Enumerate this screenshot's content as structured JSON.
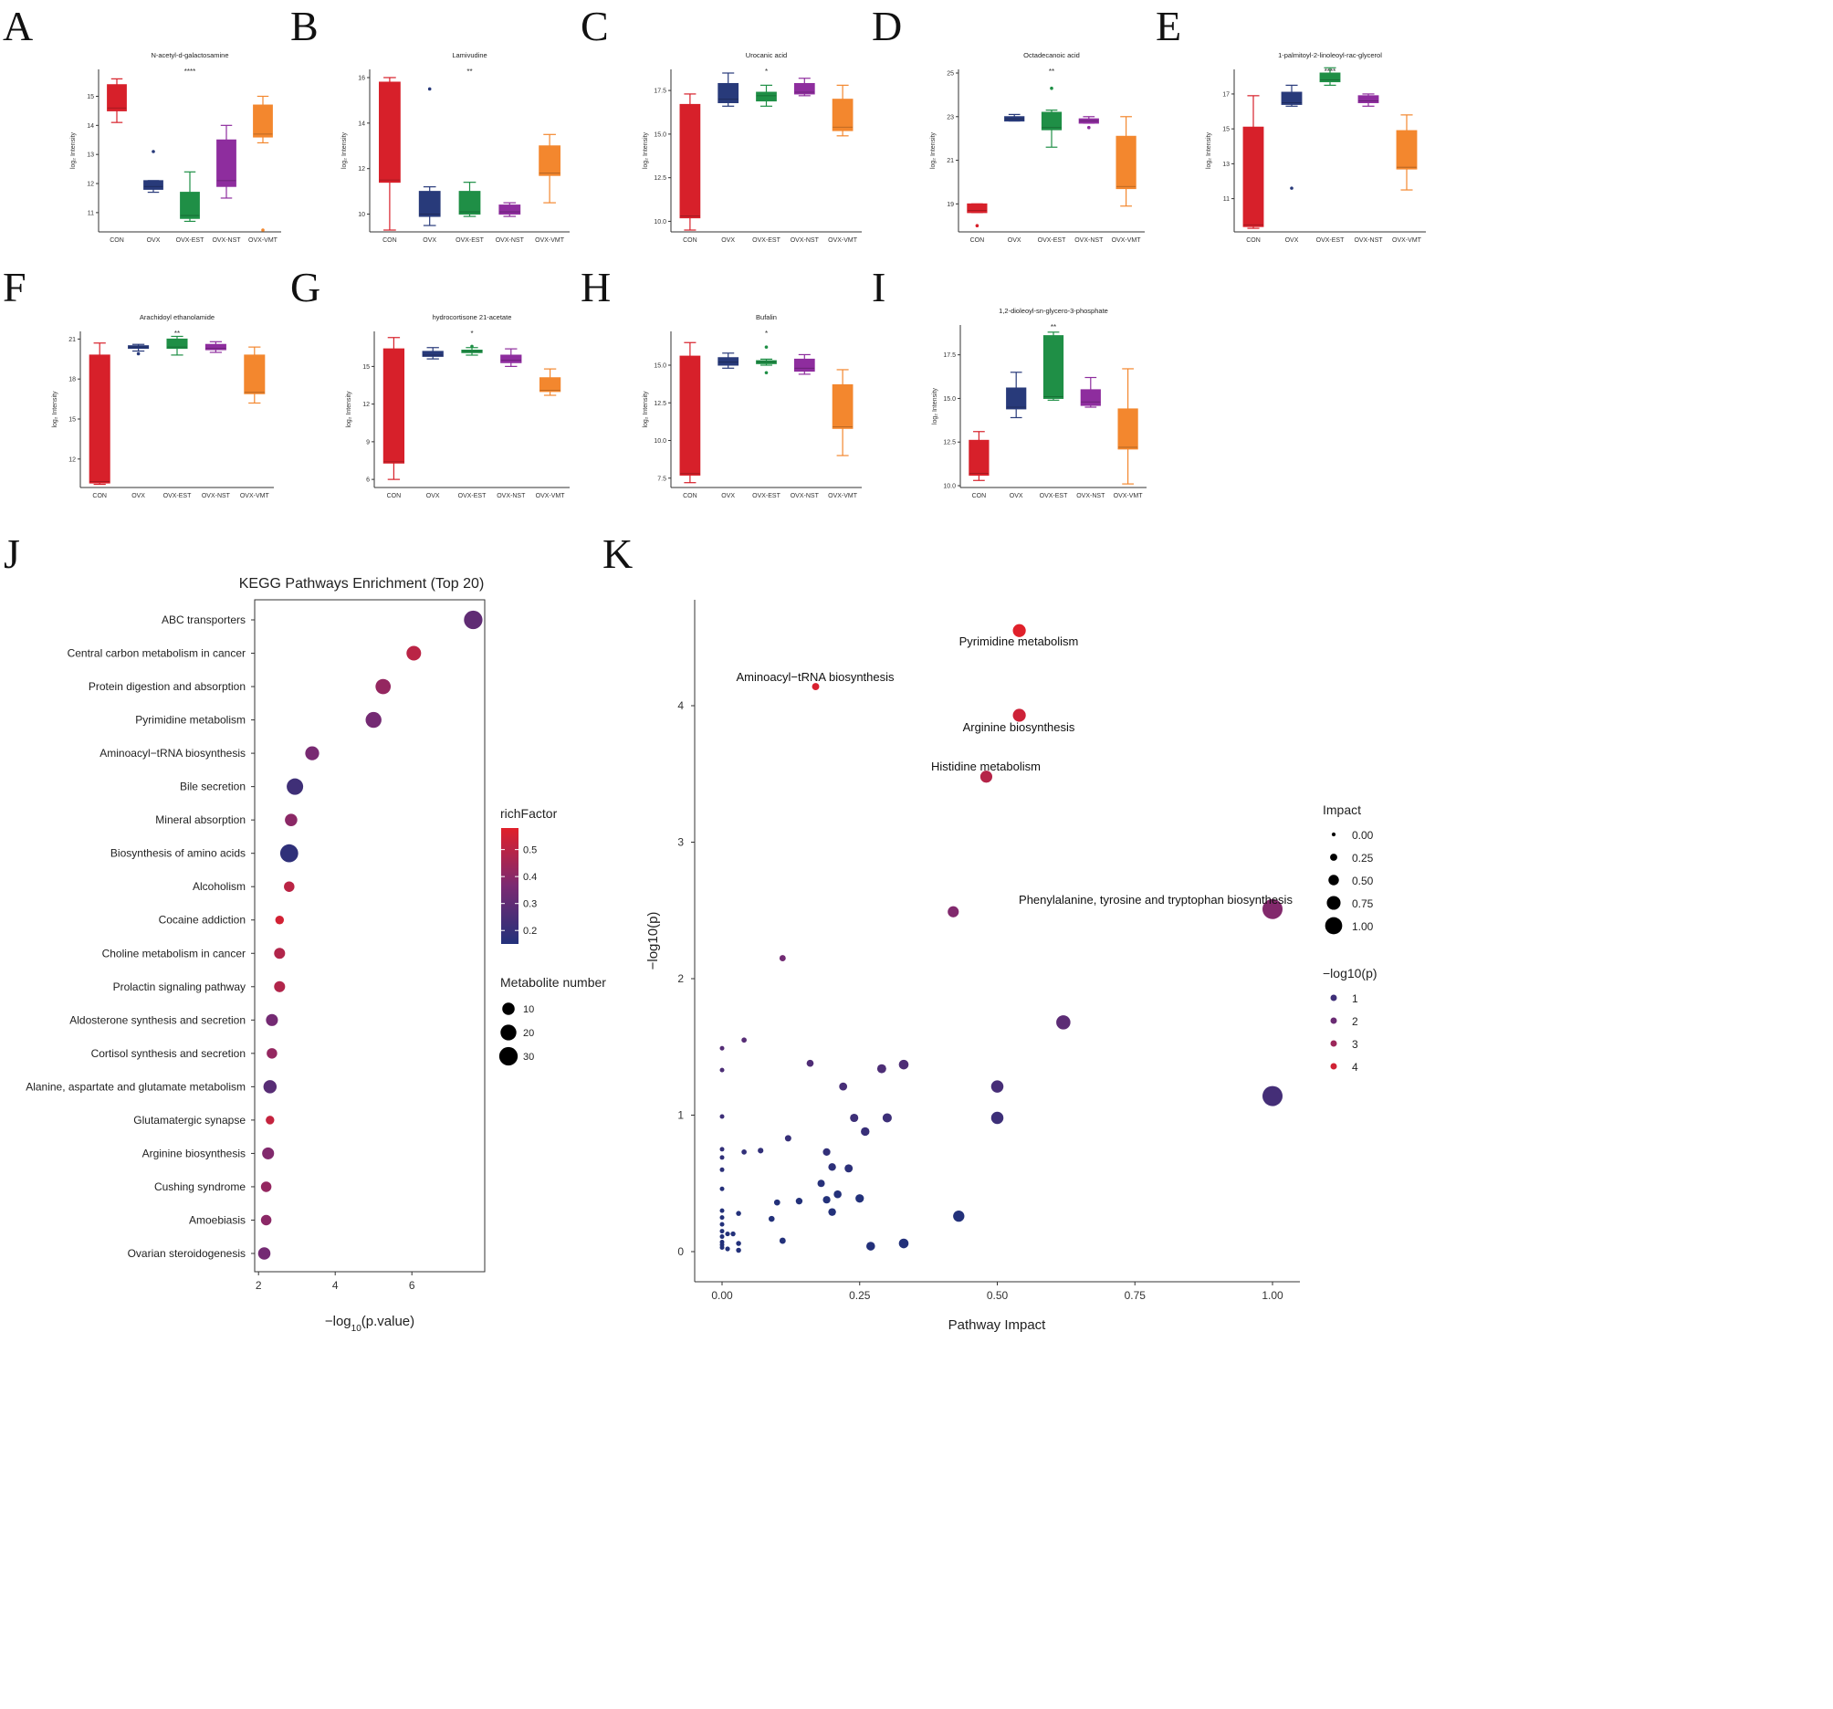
{
  "box_groups": [
    "CON",
    "OVX",
    "OVX-EST",
    "OVX-NST",
    "OVX-VMT"
  ],
  "box_colors": [
    "#d7202a",
    "#283a7a",
    "#1f8f46",
    "#8e2d9e",
    "#f3872e"
  ],
  "y_axis_label": "log₂ Intensity",
  "chart_data": [
    {
      "panel": "A",
      "type": "box",
      "title": "N-acetyl-d-galactosamine",
      "significance": "****",
      "ylim": [
        10.4,
        15.8
      ],
      "yticks": [
        11,
        12,
        13,
        14,
        15
      ],
      "boxes": [
        {
          "group": "CON",
          "min": 14.1,
          "q1": 14.5,
          "median": 14.6,
          "q3": 15.4,
          "max": 15.6,
          "outliers": []
        },
        {
          "group": "OVX",
          "min": 11.7,
          "q1": 11.8,
          "median": 11.9,
          "q3": 12.1,
          "max": 12.1,
          "outliers": [
            13.1
          ]
        },
        {
          "group": "OVX-EST",
          "min": 10.7,
          "q1": 10.8,
          "median": 10.9,
          "q3": 11.7,
          "max": 12.4,
          "outliers": []
        },
        {
          "group": "OVX-NST",
          "min": 11.5,
          "q1": 11.9,
          "median": 12.1,
          "q3": 13.5,
          "max": 14.0,
          "outliers": []
        },
        {
          "group": "OVX-VMT",
          "min": 13.4,
          "q1": 13.6,
          "median": 13.7,
          "q3": 14.7,
          "max": 15.0,
          "outliers": [
            10.4
          ]
        }
      ]
    },
    {
      "panel": "B",
      "type": "box",
      "title": "Lamivudine",
      "significance": "**",
      "ylim": [
        9.3,
        16.2
      ],
      "yticks": [
        10,
        12,
        14,
        16
      ],
      "boxes": [
        {
          "group": "CON",
          "min": 9.3,
          "q1": 11.4,
          "median": 11.5,
          "q3": 15.8,
          "max": 16.0,
          "outliers": []
        },
        {
          "group": "OVX",
          "min": 9.5,
          "q1": 9.9,
          "median": 10.0,
          "q3": 11.0,
          "max": 11.2,
          "outliers": [
            15.5
          ]
        },
        {
          "group": "OVX-EST",
          "min": 9.9,
          "q1": 10.0,
          "median": 10.1,
          "q3": 11.0,
          "max": 11.4,
          "outliers": []
        },
        {
          "group": "OVX-NST",
          "min": 9.9,
          "q1": 10.0,
          "median": 10.1,
          "q3": 10.4,
          "max": 10.5,
          "outliers": []
        },
        {
          "group": "OVX-VMT",
          "min": 10.5,
          "q1": 11.7,
          "median": 11.8,
          "q3": 13.0,
          "max": 13.5,
          "outliers": []
        }
      ]
    },
    {
      "panel": "C",
      "type": "box",
      "title": "Urocanic acid",
      "significance": "*",
      "ylim": [
        9.5,
        18.5
      ],
      "yticks": [
        10.0,
        12.5,
        15.0,
        17.5
      ],
      "ytick_labels": [
        "10.0",
        "12.5",
        "15.0",
        "17.5"
      ],
      "boxes": [
        {
          "group": "CON",
          "min": 9.5,
          "q1": 10.2,
          "median": 10.3,
          "q3": 16.7,
          "max": 17.3,
          "outliers": []
        },
        {
          "group": "OVX",
          "min": 16.6,
          "q1": 16.8,
          "median": 17.0,
          "q3": 17.9,
          "max": 18.5,
          "outliers": []
        },
        {
          "group": "OVX-EST",
          "min": 16.6,
          "q1": 16.9,
          "median": 17.2,
          "q3": 17.4,
          "max": 17.8,
          "outliers": []
        },
        {
          "group": "OVX-NST",
          "min": 17.2,
          "q1": 17.3,
          "median": 17.4,
          "q3": 17.9,
          "max": 18.2,
          "outliers": []
        },
        {
          "group": "OVX-VMT",
          "min": 14.9,
          "q1": 15.2,
          "median": 15.4,
          "q3": 17.0,
          "max": 17.8,
          "outliers": []
        }
      ]
    },
    {
      "panel": "D",
      "type": "box",
      "title": "Octadecanoic acid",
      "significance": "**",
      "ylim": [
        17.8,
        25.0
      ],
      "yticks": [
        19,
        21,
        23,
        25
      ],
      "boxes": [
        {
          "group": "CON",
          "min": 18.6,
          "q1": 18.6,
          "median": 18.7,
          "q3": 19.0,
          "max": 19.0,
          "outliers": [
            18.0
          ]
        },
        {
          "group": "OVX",
          "min": 22.8,
          "q1": 22.8,
          "median": 22.9,
          "q3": 23.0,
          "max": 23.1,
          "outliers": []
        },
        {
          "group": "OVX-EST",
          "min": 21.6,
          "q1": 22.4,
          "median": 22.5,
          "q3": 23.2,
          "max": 23.3,
          "outliers": [
            24.3
          ]
        },
        {
          "group": "OVX-NST",
          "min": 22.7,
          "q1": 22.7,
          "median": 22.8,
          "q3": 22.9,
          "max": 23.0,
          "outliers": [
            22.5
          ]
        },
        {
          "group": "OVX-VMT",
          "min": 18.9,
          "q1": 19.7,
          "median": 19.8,
          "q3": 22.1,
          "max": 23.0,
          "outliers": []
        }
      ]
    },
    {
      "panel": "E",
      "type": "box",
      "title": "1-palmitoyl-2-linoleoyl-rac-glycerol",
      "significance": "****",
      "ylim": [
        9.2,
        18.2
      ],
      "yticks": [
        11,
        13,
        15,
        17
      ],
      "boxes": [
        {
          "group": "CON",
          "min": 9.3,
          "q1": 9.4,
          "median": 9.5,
          "q3": 15.1,
          "max": 16.9,
          "outliers": []
        },
        {
          "group": "OVX",
          "min": 16.3,
          "q1": 16.4,
          "median": 16.5,
          "q3": 17.1,
          "max": 17.5,
          "outliers": [
            11.6
          ]
        },
        {
          "group": "OVX-EST",
          "min": 17.5,
          "q1": 17.7,
          "median": 17.8,
          "q3": 18.2,
          "max": 18.5,
          "outliers": []
        },
        {
          "group": "OVX-NST",
          "min": 16.3,
          "q1": 16.5,
          "median": 16.6,
          "q3": 16.9,
          "max": 17.0,
          "outliers": []
        },
        {
          "group": "OVX-VMT",
          "min": 11.5,
          "q1": 12.7,
          "median": 12.8,
          "q3": 14.9,
          "max": 15.8,
          "outliers": []
        }
      ]
    },
    {
      "panel": "F",
      "type": "box",
      "title": "Arachidoyl ethanolamide",
      "significance": "**",
      "ylim": [
        10.0,
        21.3
      ],
      "yticks": [
        12,
        15,
        18,
        21
      ],
      "boxes": [
        {
          "group": "CON",
          "min": 10.1,
          "q1": 10.2,
          "median": 10.3,
          "q3": 19.8,
          "max": 20.7,
          "outliers": []
        },
        {
          "group": "OVX",
          "min": 20.1,
          "q1": 20.3,
          "median": 20.4,
          "q3": 20.5,
          "max": 20.6,
          "outliers": [
            19.9
          ]
        },
        {
          "group": "OVX-EST",
          "min": 19.8,
          "q1": 20.3,
          "median": 20.4,
          "q3": 21.0,
          "max": 21.2,
          "outliers": []
        },
        {
          "group": "OVX-NST",
          "min": 20.0,
          "q1": 20.2,
          "median": 20.3,
          "q3": 20.6,
          "max": 20.8,
          "outliers": []
        },
        {
          "group": "OVX-VMT",
          "min": 16.2,
          "q1": 16.9,
          "median": 17.0,
          "q3": 19.8,
          "max": 20.4,
          "outliers": []
        }
      ]
    },
    {
      "panel": "G",
      "type": "box",
      "title": "hydrocortisone 21-acetate",
      "significance": "*",
      "ylim": [
        5.5,
        17.5
      ],
      "yticks": [
        6,
        9,
        12,
        15
      ],
      "boxes": [
        {
          "group": "CON",
          "min": 6.0,
          "q1": 7.3,
          "median": 7.4,
          "q3": 16.4,
          "max": 17.3,
          "outliers": []
        },
        {
          "group": "OVX",
          "min": 15.6,
          "q1": 15.8,
          "median": 15.9,
          "q3": 16.2,
          "max": 16.5,
          "outliers": []
        },
        {
          "group": "OVX-EST",
          "min": 15.9,
          "q1": 16.1,
          "median": 16.2,
          "q3": 16.3,
          "max": 16.5,
          "outliers": [
            16.6
          ]
        },
        {
          "group": "OVX-NST",
          "min": 15.0,
          "q1": 15.3,
          "median": 15.5,
          "q3": 15.9,
          "max": 16.4,
          "outliers": []
        },
        {
          "group": "OVX-VMT",
          "min": 12.7,
          "q1": 13.0,
          "median": 13.1,
          "q3": 14.1,
          "max": 14.8,
          "outliers": []
        }
      ]
    },
    {
      "panel": "H",
      "type": "box",
      "title": "Bufalin",
      "significance": "*",
      "ylim": [
        7.0,
        17.0
      ],
      "yticks": [
        7.5,
        10.0,
        12.5,
        15.0
      ],
      "ytick_labels": [
        "7.5",
        "10.0",
        "12.5",
        "15.0"
      ],
      "boxes": [
        {
          "group": "CON",
          "min": 7.2,
          "q1": 7.7,
          "median": 7.8,
          "q3": 15.6,
          "max": 16.5,
          "outliers": []
        },
        {
          "group": "OVX",
          "min": 14.8,
          "q1": 15.0,
          "median": 15.2,
          "q3": 15.5,
          "max": 15.8,
          "outliers": []
        },
        {
          "group": "OVX-EST",
          "min": 15.0,
          "q1": 15.1,
          "median": 15.2,
          "q3": 15.3,
          "max": 15.4,
          "outliers": [
            14.5,
            16.2
          ]
        },
        {
          "group": "OVX-NST",
          "min": 14.4,
          "q1": 14.6,
          "median": 14.8,
          "q3": 15.4,
          "max": 15.7,
          "outliers": []
        },
        {
          "group": "OVX-VMT",
          "min": 9.0,
          "q1": 10.8,
          "median": 10.9,
          "q3": 13.7,
          "max": 14.7,
          "outliers": []
        }
      ]
    },
    {
      "panel": "I",
      "type": "box",
      "title": "1,2-dioleoyl-sn-glycero-3-phosphate",
      "significance": "**",
      "ylim": [
        10.0,
        19.0
      ],
      "yticks": [
        10.0,
        12.5,
        15.0,
        17.5
      ],
      "ytick_labels": [
        "10.0",
        "12.5",
        "15.0",
        "17.5"
      ],
      "boxes": [
        {
          "group": "CON",
          "min": 10.3,
          "q1": 10.6,
          "median": 10.7,
          "q3": 12.6,
          "max": 13.1,
          "outliers": []
        },
        {
          "group": "OVX",
          "min": 13.9,
          "q1": 14.4,
          "median": 14.5,
          "q3": 15.6,
          "max": 16.5,
          "outliers": []
        },
        {
          "group": "OVX-EST",
          "min": 14.9,
          "q1": 15.0,
          "median": 15.1,
          "q3": 18.6,
          "max": 18.8,
          "outliers": []
        },
        {
          "group": "OVX-NST",
          "min": 14.5,
          "q1": 14.6,
          "median": 14.8,
          "q3": 15.5,
          "max": 16.2,
          "outliers": []
        },
        {
          "group": "OVX-VMT",
          "min": 10.1,
          "q1": 12.1,
          "median": 12.2,
          "q3": 14.4,
          "max": 16.7,
          "outliers": []
        }
      ]
    },
    {
      "panel": "J",
      "type": "scatter",
      "title": "KEGG Pathways Enrichment (Top 20)",
      "xlabel_main": "−log",
      "xlabel_sub": "10",
      "xlabel_tail": "(p.value)",
      "xlim": [
        1.9,
        7.9
      ],
      "xticks": [
        2,
        4,
        6
      ],
      "pathways": [
        "ABC transporters",
        "Central carbon metabolism in cancer",
        "Protein digestion and absorption",
        "Pyrimidine metabolism",
        "Aminoacyl−tRNA biosynthesis",
        "Bile secretion",
        "Mineral absorption",
        "Biosynthesis of amino acids",
        "Alcoholism",
        "Cocaine addiction",
        "Choline metabolism in cancer",
        "Prolactin signaling pathway",
        "Aldosterone synthesis and secretion",
        "Cortisol synthesis and secretion",
        "Alanine, aspartate and glutamate metabolism",
        "Glutamatergic synapse",
        "Arginine biosynthesis",
        "Cushing syndrome",
        "Amoebiasis",
        "Ovarian steroidogenesis"
      ],
      "neglog10p": [
        7.6,
        6.05,
        5.25,
        5.0,
        3.4,
        2.95,
        2.85,
        2.8,
        2.8,
        2.55,
        2.55,
        2.55,
        2.35,
        2.35,
        2.3,
        2.3,
        2.25,
        2.2,
        2.2,
        2.15
      ],
      "richFactor": [
        0.3,
        0.5,
        0.42,
        0.35,
        0.36,
        0.22,
        0.4,
        0.18,
        0.5,
        0.55,
        0.48,
        0.48,
        0.35,
        0.42,
        0.28,
        0.52,
        0.38,
        0.42,
        0.4,
        0.35
      ],
      "metabolite_number": [
        30,
        16,
        18,
        20,
        14,
        22,
        10,
        28,
        6,
        3,
        7,
        7,
        9,
        6,
        12,
        3,
        9,
        6,
        6,
        10
      ],
      "color_legend": {
        "title": "richFactor",
        "range": [
          0.15,
          0.58
        ],
        "ticks": [
          0.2,
          0.3,
          0.4,
          0.5
        ],
        "tick_labels": [
          "0.2",
          "0.3",
          "0.4",
          "0.5"
        ]
      },
      "size_legend": {
        "title": "Metabolite number",
        "values": [
          10,
          20,
          30
        ]
      }
    },
    {
      "panel": "K",
      "type": "scatter",
      "xlabel": "Pathway Impact",
      "ylabel": "−log10(p)",
      "xlim": [
        -0.05,
        1.05
      ],
      "ylim": [
        -0.2,
        4.8
      ],
      "xticks": [
        0.0,
        0.25,
        0.5,
        0.75,
        1.0
      ],
      "xtick_labels": [
        "0.00",
        "0.25",
        "0.50",
        "0.75",
        "1.00"
      ],
      "yticks": [
        0,
        1,
        2,
        3,
        4
      ],
      "ytick_labels": [
        "0",
        "1",
        "2",
        "3",
        "4"
      ],
      "points": [
        {
          "impact": 0.54,
          "p": 4.55,
          "label": "Pyrimidine metabolism"
        },
        {
          "impact": 0.17,
          "p": 4.14,
          "label": "Aminoacyl−tRNA biosynthesis"
        },
        {
          "impact": 0.54,
          "p": 3.93,
          "label": "Arginine biosynthesis"
        },
        {
          "impact": 0.48,
          "p": 3.48,
          "label": "Histidine metabolism"
        },
        {
          "impact": 1.0,
          "p": 2.51,
          "label": "Phenylalanine, tyrosine and tryptophan biosynthesis"
        },
        {
          "impact": 0.42,
          "p": 2.49
        },
        {
          "impact": 0.11,
          "p": 2.15
        },
        {
          "impact": 0.62,
          "p": 1.68
        },
        {
          "impact": 0.0,
          "p": 1.49
        },
        {
          "impact": 0.04,
          "p": 1.55
        },
        {
          "impact": 0.16,
          "p": 1.38
        },
        {
          "impact": 0.33,
          "p": 1.37
        },
        {
          "impact": 0.29,
          "p": 1.34
        },
        {
          "impact": 0.0,
          "p": 1.33
        },
        {
          "impact": 0.22,
          "p": 1.21
        },
        {
          "impact": 0.5,
          "p": 1.21
        },
        {
          "impact": 1.0,
          "p": 1.14
        },
        {
          "impact": 0.0,
          "p": 0.99
        },
        {
          "impact": 0.24,
          "p": 0.98
        },
        {
          "impact": 0.3,
          "p": 0.98
        },
        {
          "impact": 0.5,
          "p": 0.98
        },
        {
          "impact": 0.26,
          "p": 0.88
        },
        {
          "impact": 0.12,
          "p": 0.83
        },
        {
          "impact": 0.0,
          "p": 0.75
        },
        {
          "impact": 0.07,
          "p": 0.74
        },
        {
          "impact": 0.19,
          "p": 0.73
        },
        {
          "impact": 0.04,
          "p": 0.73
        },
        {
          "impact": 0.0,
          "p": 0.69
        },
        {
          "impact": 0.2,
          "p": 0.62
        },
        {
          "impact": 0.23,
          "p": 0.61
        },
        {
          "impact": 0.0,
          "p": 0.6
        },
        {
          "impact": 0.18,
          "p": 0.5
        },
        {
          "impact": 0.0,
          "p": 0.46
        },
        {
          "impact": 0.21,
          "p": 0.42
        },
        {
          "impact": 0.25,
          "p": 0.39
        },
        {
          "impact": 0.19,
          "p": 0.38
        },
        {
          "impact": 0.14,
          "p": 0.37
        },
        {
          "impact": 0.1,
          "p": 0.36
        },
        {
          "impact": 0.0,
          "p": 0.3
        },
        {
          "impact": 0.2,
          "p": 0.29
        },
        {
          "impact": 0.03,
          "p": 0.28
        },
        {
          "impact": 0.43,
          "p": 0.26
        },
        {
          "impact": 0.0,
          "p": 0.25
        },
        {
          "impact": 0.09,
          "p": 0.24
        },
        {
          "impact": 0.0,
          "p": 0.2
        },
        {
          "impact": 0.0,
          "p": 0.15
        },
        {
          "impact": 0.01,
          "p": 0.13
        },
        {
          "impact": 0.02,
          "p": 0.13
        },
        {
          "impact": 0.0,
          "p": 0.11
        },
        {
          "impact": 0.11,
          "p": 0.08
        },
        {
          "impact": 0.0,
          "p": 0.07
        },
        {
          "impact": 0.03,
          "p": 0.06
        },
        {
          "impact": 0.33,
          "p": 0.06
        },
        {
          "impact": 0.0,
          "p": 0.05
        },
        {
          "impact": 0.27,
          "p": 0.04
        },
        {
          "impact": 0.0,
          "p": 0.03
        },
        {
          "impact": 0.01,
          "p": 0.02
        },
        {
          "impact": 0.03,
          "p": 0.01
        }
      ],
      "size_legend": {
        "title": "Impact",
        "values": [
          0.0,
          0.25,
          0.5,
          0.75,
          1.0
        ],
        "labels": [
          "0.00",
          "0.25",
          "0.50",
          "0.75",
          "1.00"
        ]
      },
      "color_legend": {
        "title": "−log10(p)",
        "values": [
          1,
          2,
          3,
          4
        ],
        "labels": [
          "1",
          "2",
          "3",
          "4"
        ]
      }
    }
  ]
}
